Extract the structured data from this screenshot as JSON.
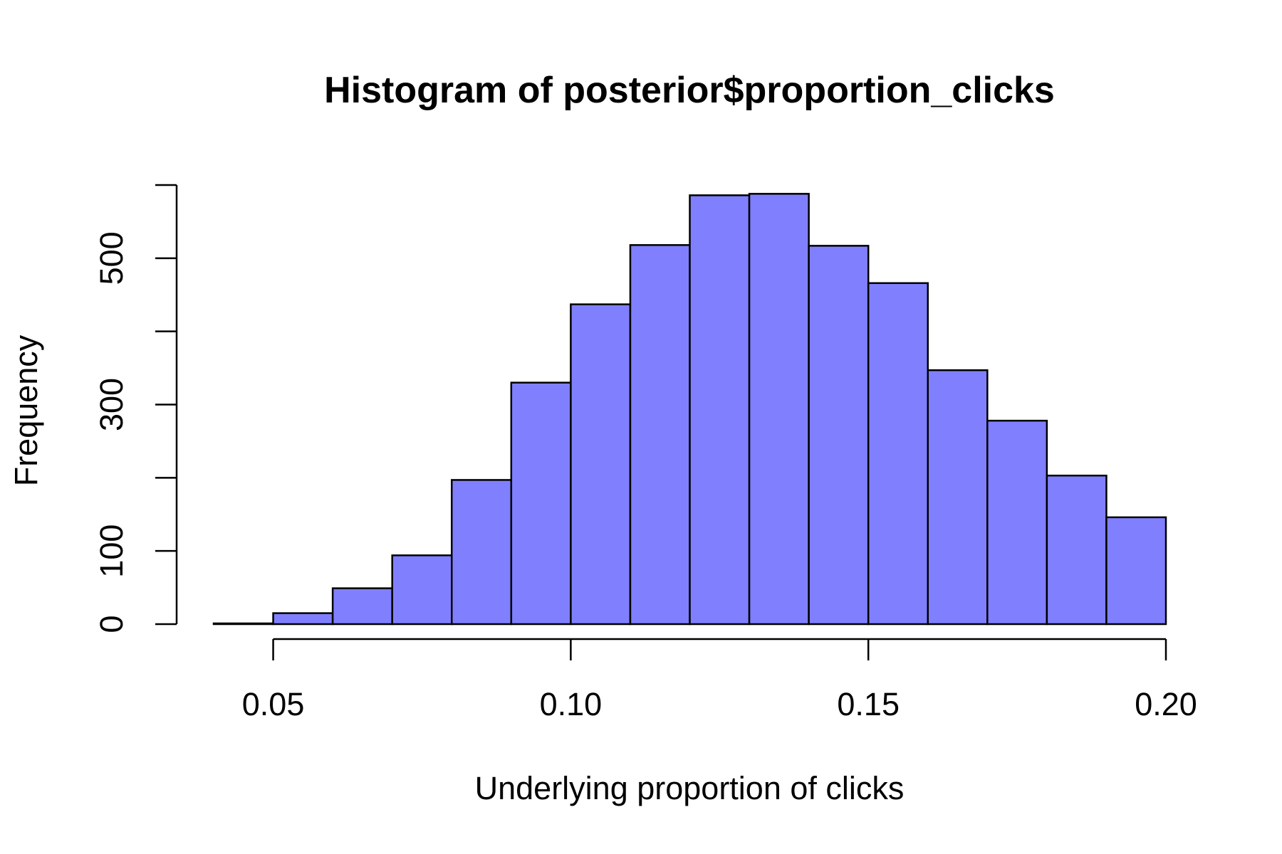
{
  "chart_data": {
    "type": "bar",
    "title": "Histogram of posterior$proportion_clicks",
    "xlabel": "Underlying proportion of clicks",
    "ylabel": "Frequency",
    "bin_edges": [
      0.04,
      0.05,
      0.06,
      0.07,
      0.08,
      0.09,
      0.1,
      0.11,
      0.12,
      0.13,
      0.14,
      0.15,
      0.16,
      0.17,
      0.18,
      0.19,
      0.2
    ],
    "values": [
      1,
      15,
      49,
      94,
      197,
      330,
      437,
      518,
      586,
      588,
      517,
      466,
      347,
      278,
      203,
      146
    ],
    "xlim": [
      0.04,
      0.2
    ],
    "ylim": [
      0,
      600
    ],
    "x_ticks": [
      0.05,
      0.1,
      0.15,
      0.2
    ],
    "x_tick_labels": [
      "0.05",
      "0.10",
      "0.15",
      "0.20"
    ],
    "y_ticks": [
      0,
      100,
      200,
      300,
      400,
      500,
      600
    ],
    "y_tick_labels": [
      "0",
      "100",
      "",
      "300",
      "",
      "500",
      ""
    ],
    "bar_color": "#8080ff",
    "grid": false,
    "legend": "none"
  }
}
